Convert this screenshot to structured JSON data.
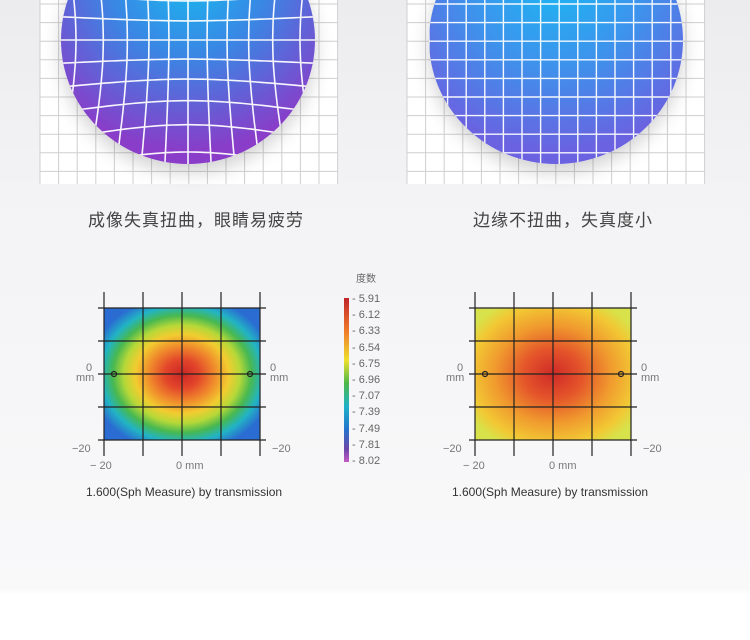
{
  "lenses": [
    {
      "caption": "成像失真扭曲，眼睛易疲劳"
    },
    {
      "caption": "边缘不扭曲，失真度小"
    }
  ],
  "color_scale": {
    "title": "度数",
    "labels": [
      "- 5.91",
      "- 6.12",
      "- 6.33",
      "- 6.54",
      "- 6.75",
      "- 6.96",
      "- 7.07",
      "- 7.39",
      "- 7.49",
      "- 7.81",
      "- 8.02"
    ],
    "colors": [
      "#c0242a",
      "#e0442a",
      "#f07a2a",
      "#f4b02e",
      "#e6e02c",
      "#9ccc34",
      "#3fb64a",
      "#1eb2c8",
      "#2474cc",
      "#6a46a8",
      "#c65ac6"
    ]
  },
  "maps": [
    {
      "caption": "1.600(Sph Measure) by transmission",
      "axis": {
        "left0": "0",
        "left_mm": "mm",
        "right0": "0",
        "right_mm": "mm",
        "left_m20": "−20",
        "right_m20": "−20",
        "x_m20": "− 20",
        "x_0mm": "0 mm"
      }
    },
    {
      "caption": "1.600(Sph Measure) by transmission",
      "axis": {
        "left0": "0",
        "left_mm": "mm",
        "right0": "0",
        "right_mm": "mm",
        "left_m20": "−20",
        "right_m20": "−20",
        "x_m20": "− 20",
        "x_0mm": "0 mm"
      }
    }
  ]
}
